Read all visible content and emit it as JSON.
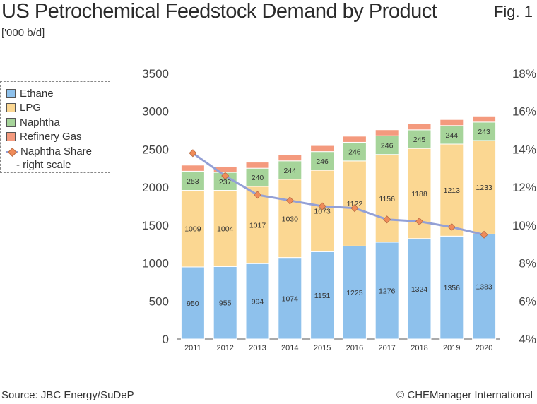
{
  "header": {
    "title": "US Petrochemical Feedstock Demand by Product",
    "fig_label": "Fig. 1",
    "unit": "['000 b/d]"
  },
  "legend": {
    "items": [
      {
        "label": "Ethane",
        "color": "#8ec1ec"
      },
      {
        "label": "LPG",
        "color": "#fbd792"
      },
      {
        "label": "Naphtha",
        "color": "#a6d49a"
      },
      {
        "label": "Refinery Gas",
        "color": "#f49a7e"
      }
    ],
    "line_label": "Naphtha Share",
    "line_sublabel": "- right scale"
  },
  "chart_data": {
    "type": "bar",
    "stacked": true,
    "title": "US Petrochemical Feedstock Demand by Product",
    "categories": [
      "2011",
      "2012",
      "2013",
      "2014",
      "2015",
      "2016",
      "2017",
      "2018",
      "2019",
      "2020"
    ],
    "series": [
      {
        "name": "Ethane",
        "color": "#8ec1ec",
        "values": [
          950,
          955,
          994,
          1074,
          1151,
          1225,
          1276,
          1324,
          1356,
          1383
        ]
      },
      {
        "name": "LPG",
        "color": "#fbd792",
        "values": [
          1009,
          1004,
          1017,
          1030,
          1073,
          1122,
          1156,
          1188,
          1213,
          1233
        ]
      },
      {
        "name": "Naphtha",
        "color": "#a6d49a",
        "values": [
          253,
          237,
          240,
          244,
          246,
          246,
          246,
          245,
          244,
          243
        ]
      },
      {
        "name": "Refinery Gas",
        "color": "#f49a7e",
        "values": [
          80,
          80,
          80,
          80,
          80,
          80,
          80,
          80,
          80,
          80
        ]
      }
    ],
    "line_series": {
      "name": "Naphtha Share",
      "axis": "right",
      "color": "#93a0d6",
      "marker_color": "#f08c5a",
      "values": [
        13.8,
        12.6,
        11.6,
        11.3,
        11.0,
        10.9,
        10.3,
        10.2,
        9.9,
        9.5
      ]
    },
    "ylim": [
      0,
      3500
    ],
    "yticks": [
      "0",
      "500",
      "1000",
      "1500",
      "2000",
      "2500",
      "3000",
      "3500"
    ],
    "y2lim": [
      4,
      18
    ],
    "y2ticks": [
      "4%",
      "6%",
      "8%",
      "10%",
      "12%",
      "14%",
      "16%",
      "18%"
    ],
    "grid": false
  },
  "footer": {
    "source": "Source: JBC Energy/SuDeP",
    "copyright": "© CHEManager International"
  }
}
